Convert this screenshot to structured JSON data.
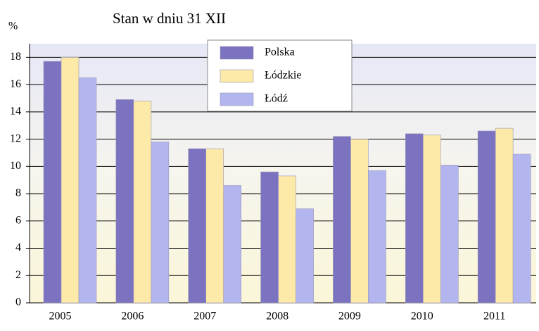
{
  "chart_data": {
    "type": "bar",
    "title": "Stan w dniu 31 XII",
    "y_label": "%",
    "categories": [
      "2005",
      "2006",
      "2007",
      "2008",
      "2009",
      "2010",
      "2011"
    ],
    "series": [
      {
        "name": "Polska",
        "color": "#7b72c0",
        "values": [
          17.7,
          14.9,
          11.3,
          9.6,
          12.2,
          12.4,
          12.6
        ]
      },
      {
        "name": "Łódzkie",
        "color": "#fde9a8",
        "values": [
          18.0,
          14.8,
          11.3,
          9.3,
          12.0,
          12.3,
          12.8
        ]
      },
      {
        "name": "Łódź",
        "color": "#b3b5ee",
        "values": [
          16.5,
          11.8,
          8.6,
          6.9,
          9.7,
          10.1,
          10.9
        ]
      }
    ],
    "ylim": [
      0,
      19
    ],
    "yticks": [
      0,
      2,
      4,
      6,
      8,
      10,
      12,
      14,
      16,
      18
    ],
    "grid": true,
    "legend": "top"
  }
}
